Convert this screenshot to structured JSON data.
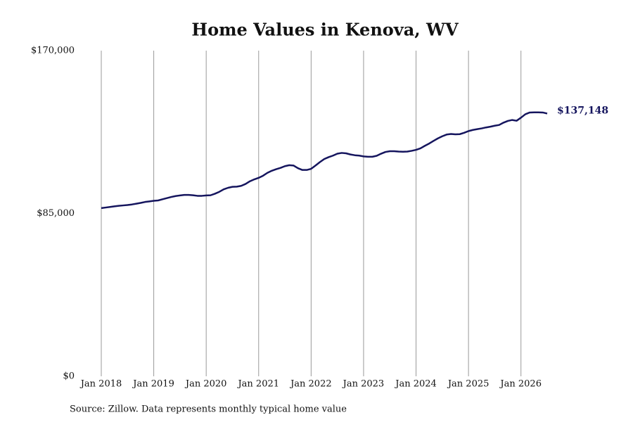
{
  "chart_data": {
    "type": "line",
    "title": "Home Values in Kenova, WV",
    "source": "Source: Zillow. Data represents monthly typical home value",
    "x": [
      "2018-01",
      "2018-02",
      "2018-03",
      "2018-04",
      "2018-05",
      "2018-06",
      "2018-07",
      "2018-08",
      "2018-09",
      "2018-10",
      "2018-11",
      "2018-12",
      "2019-01",
      "2019-02",
      "2019-03",
      "2019-04",
      "2019-05",
      "2019-06",
      "2019-07",
      "2019-08",
      "2019-09",
      "2019-10",
      "2019-11",
      "2019-12",
      "2020-01",
      "2020-02",
      "2020-03",
      "2020-04",
      "2020-05",
      "2020-06",
      "2020-07",
      "2020-08",
      "2020-09",
      "2020-10",
      "2020-11",
      "2020-12",
      "2021-01",
      "2021-02",
      "2021-03",
      "2021-04",
      "2021-05",
      "2021-06",
      "2021-07",
      "2021-08",
      "2021-09",
      "2021-10",
      "2021-11",
      "2021-12",
      "2022-01",
      "2022-02",
      "2022-03",
      "2022-04",
      "2022-05",
      "2022-06",
      "2022-07",
      "2022-08",
      "2022-09",
      "2022-10",
      "2022-11",
      "2022-12",
      "2023-01",
      "2023-02",
      "2023-03",
      "2023-04",
      "2023-05",
      "2023-06",
      "2023-07",
      "2023-08",
      "2023-09",
      "2023-10",
      "2023-11",
      "2023-12",
      "2024-01",
      "2024-02",
      "2024-03",
      "2024-04",
      "2024-05",
      "2024-06",
      "2024-07",
      "2024-08",
      "2024-09",
      "2024-10",
      "2024-11",
      "2024-12",
      "2025-01",
      "2025-02",
      "2025-03",
      "2025-04",
      "2025-05",
      "2025-06",
      "2025-07",
      "2025-08",
      "2025-09",
      "2025-10",
      "2025-11",
      "2025-12",
      "2026-01",
      "2026-02",
      "2026-03",
      "2026-04",
      "2026-05",
      "2026-06",
      "2026-07"
    ],
    "series": [
      {
        "color": "#15155e",
        "values": [
          87800,
          88100,
          88400,
          88700,
          89000,
          89200,
          89400,
          89700,
          90100,
          90500,
          91000,
          91300,
          91600,
          91800,
          92400,
          93000,
          93600,
          94100,
          94400,
          94700,
          94700,
          94500,
          94200,
          94200,
          94400,
          94500,
          95300,
          96300,
          97600,
          98400,
          98900,
          99000,
          99400,
          100400,
          101800,
          102800,
          103600,
          104700,
          106200,
          107300,
          108100,
          108800,
          109700,
          110200,
          110000,
          108600,
          107700,
          107700,
          108300,
          110000,
          111800,
          113400,
          114400,
          115200,
          116200,
          116600,
          116400,
          115800,
          115400,
          115200,
          114800,
          114600,
          114600,
          115100,
          116200,
          117100,
          117500,
          117500,
          117300,
          117200,
          117300,
          117700,
          118200,
          119000,
          120300,
          121500,
          122900,
          124200,
          125300,
          126200,
          126500,
          126300,
          126400,
          127100,
          128000,
          128600,
          129000,
          129400,
          129900,
          130300,
          130800,
          131200,
          132400,
          133300,
          133800,
          133400,
          135000,
          136800,
          137700,
          137800,
          137800,
          137700,
          137148
        ],
        "value_labels": [
          null,
          null,
          null,
          null,
          null,
          null,
          null,
          null,
          null,
          null,
          null,
          null,
          null,
          null,
          null,
          null,
          null,
          null,
          null,
          null,
          null,
          null,
          null,
          null,
          null,
          null,
          null,
          null,
          null,
          null,
          null,
          null,
          null,
          null,
          null,
          null,
          null,
          null,
          null,
          null,
          null,
          null,
          null,
          null,
          null,
          null,
          null,
          null,
          null,
          null,
          null,
          null,
          null,
          null,
          null,
          null,
          null,
          null,
          null,
          null,
          null,
          null,
          null,
          null,
          null,
          null,
          null,
          null,
          null,
          null,
          null,
          null,
          null,
          null,
          null,
          null,
          null,
          null,
          null,
          null,
          null,
          null,
          null,
          null,
          null,
          null,
          null,
          null,
          null,
          null,
          null,
          null,
          null,
          null,
          null,
          null,
          null,
          null,
          null,
          null,
          null,
          null,
          "$137,148"
        ]
      }
    ],
    "xlim": [
      "2018-01",
      "2026-07"
    ],
    "xticks": [
      {
        "value": "2018-01",
        "label": "Jan 2018"
      },
      {
        "value": "2019-01",
        "label": "Jan 2019"
      },
      {
        "value": "2020-01",
        "label": "Jan 2020"
      },
      {
        "value": "2021-01",
        "label": "Jan 2021"
      },
      {
        "value": "2022-01",
        "label": "Jan 2022"
      },
      {
        "value": "2023-01",
        "label": "Jan 2023"
      },
      {
        "value": "2024-01",
        "label": "Jan 2024"
      },
      {
        "value": "2025-01",
        "label": "Jan 2025"
      },
      {
        "value": "2026-01",
        "label": "Jan 2026"
      }
    ],
    "ylim": [
      0,
      170000
    ],
    "yticks": [
      {
        "value": 0,
        "label": "$0"
      },
      {
        "value": 85000,
        "label": "$85,000"
      },
      {
        "value": 170000,
        "label": "$170,000"
      }
    ],
    "grid": "x"
  }
}
